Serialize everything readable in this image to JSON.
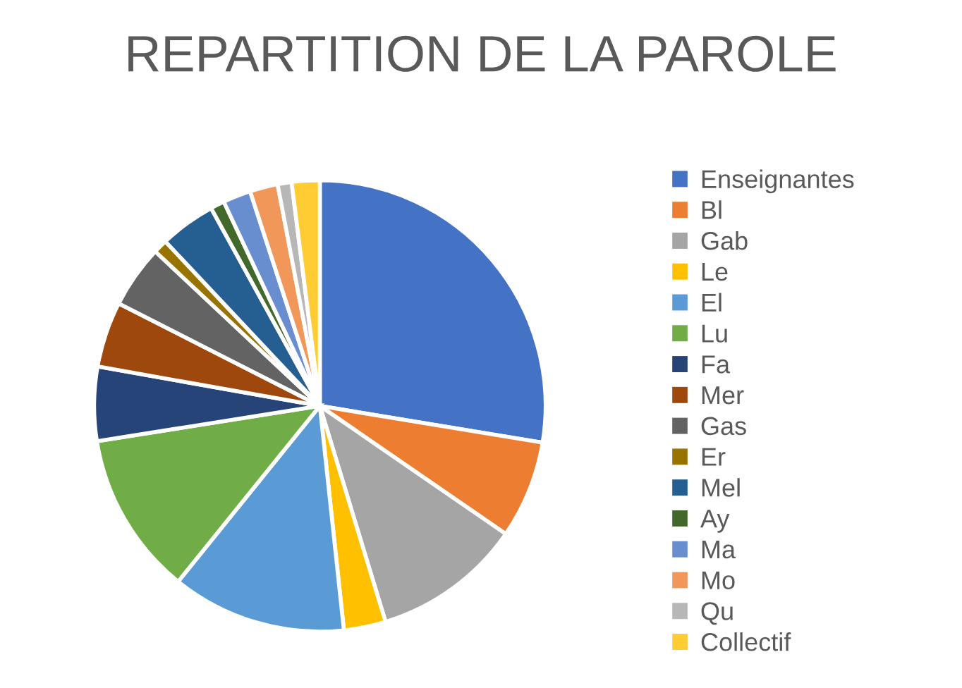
{
  "chart_data": {
    "type": "pie",
    "title": "REPARTITION DE LA PAROLE",
    "categories": [
      "Enseignantes",
      "Bl",
      "Gab",
      "Le",
      "El",
      "Lu",
      "Fa",
      "Mer",
      "Gas",
      "Er",
      "Mel",
      "Ay",
      "Ma",
      "Mo",
      "Qu",
      "Collectif"
    ],
    "values": [
      27.6,
      7,
      10.7,
      3,
      12.5,
      11.7,
      5.3,
      4.7,
      4.5,
      1,
      4,
      1,
      2,
      2,
      1,
      2
    ],
    "colors": [
      "#4472c4",
      "#ed7d31",
      "#a5a5a5",
      "#ffc000",
      "#5b9bd5",
      "#70ad47",
      "#264478",
      "#9e480e",
      "#636363",
      "#997300",
      "#255e91",
      "#43682b",
      "#698ed0",
      "#f1975a",
      "#b7b7b7",
      "#ffcd33"
    ],
    "legend": "right"
  }
}
